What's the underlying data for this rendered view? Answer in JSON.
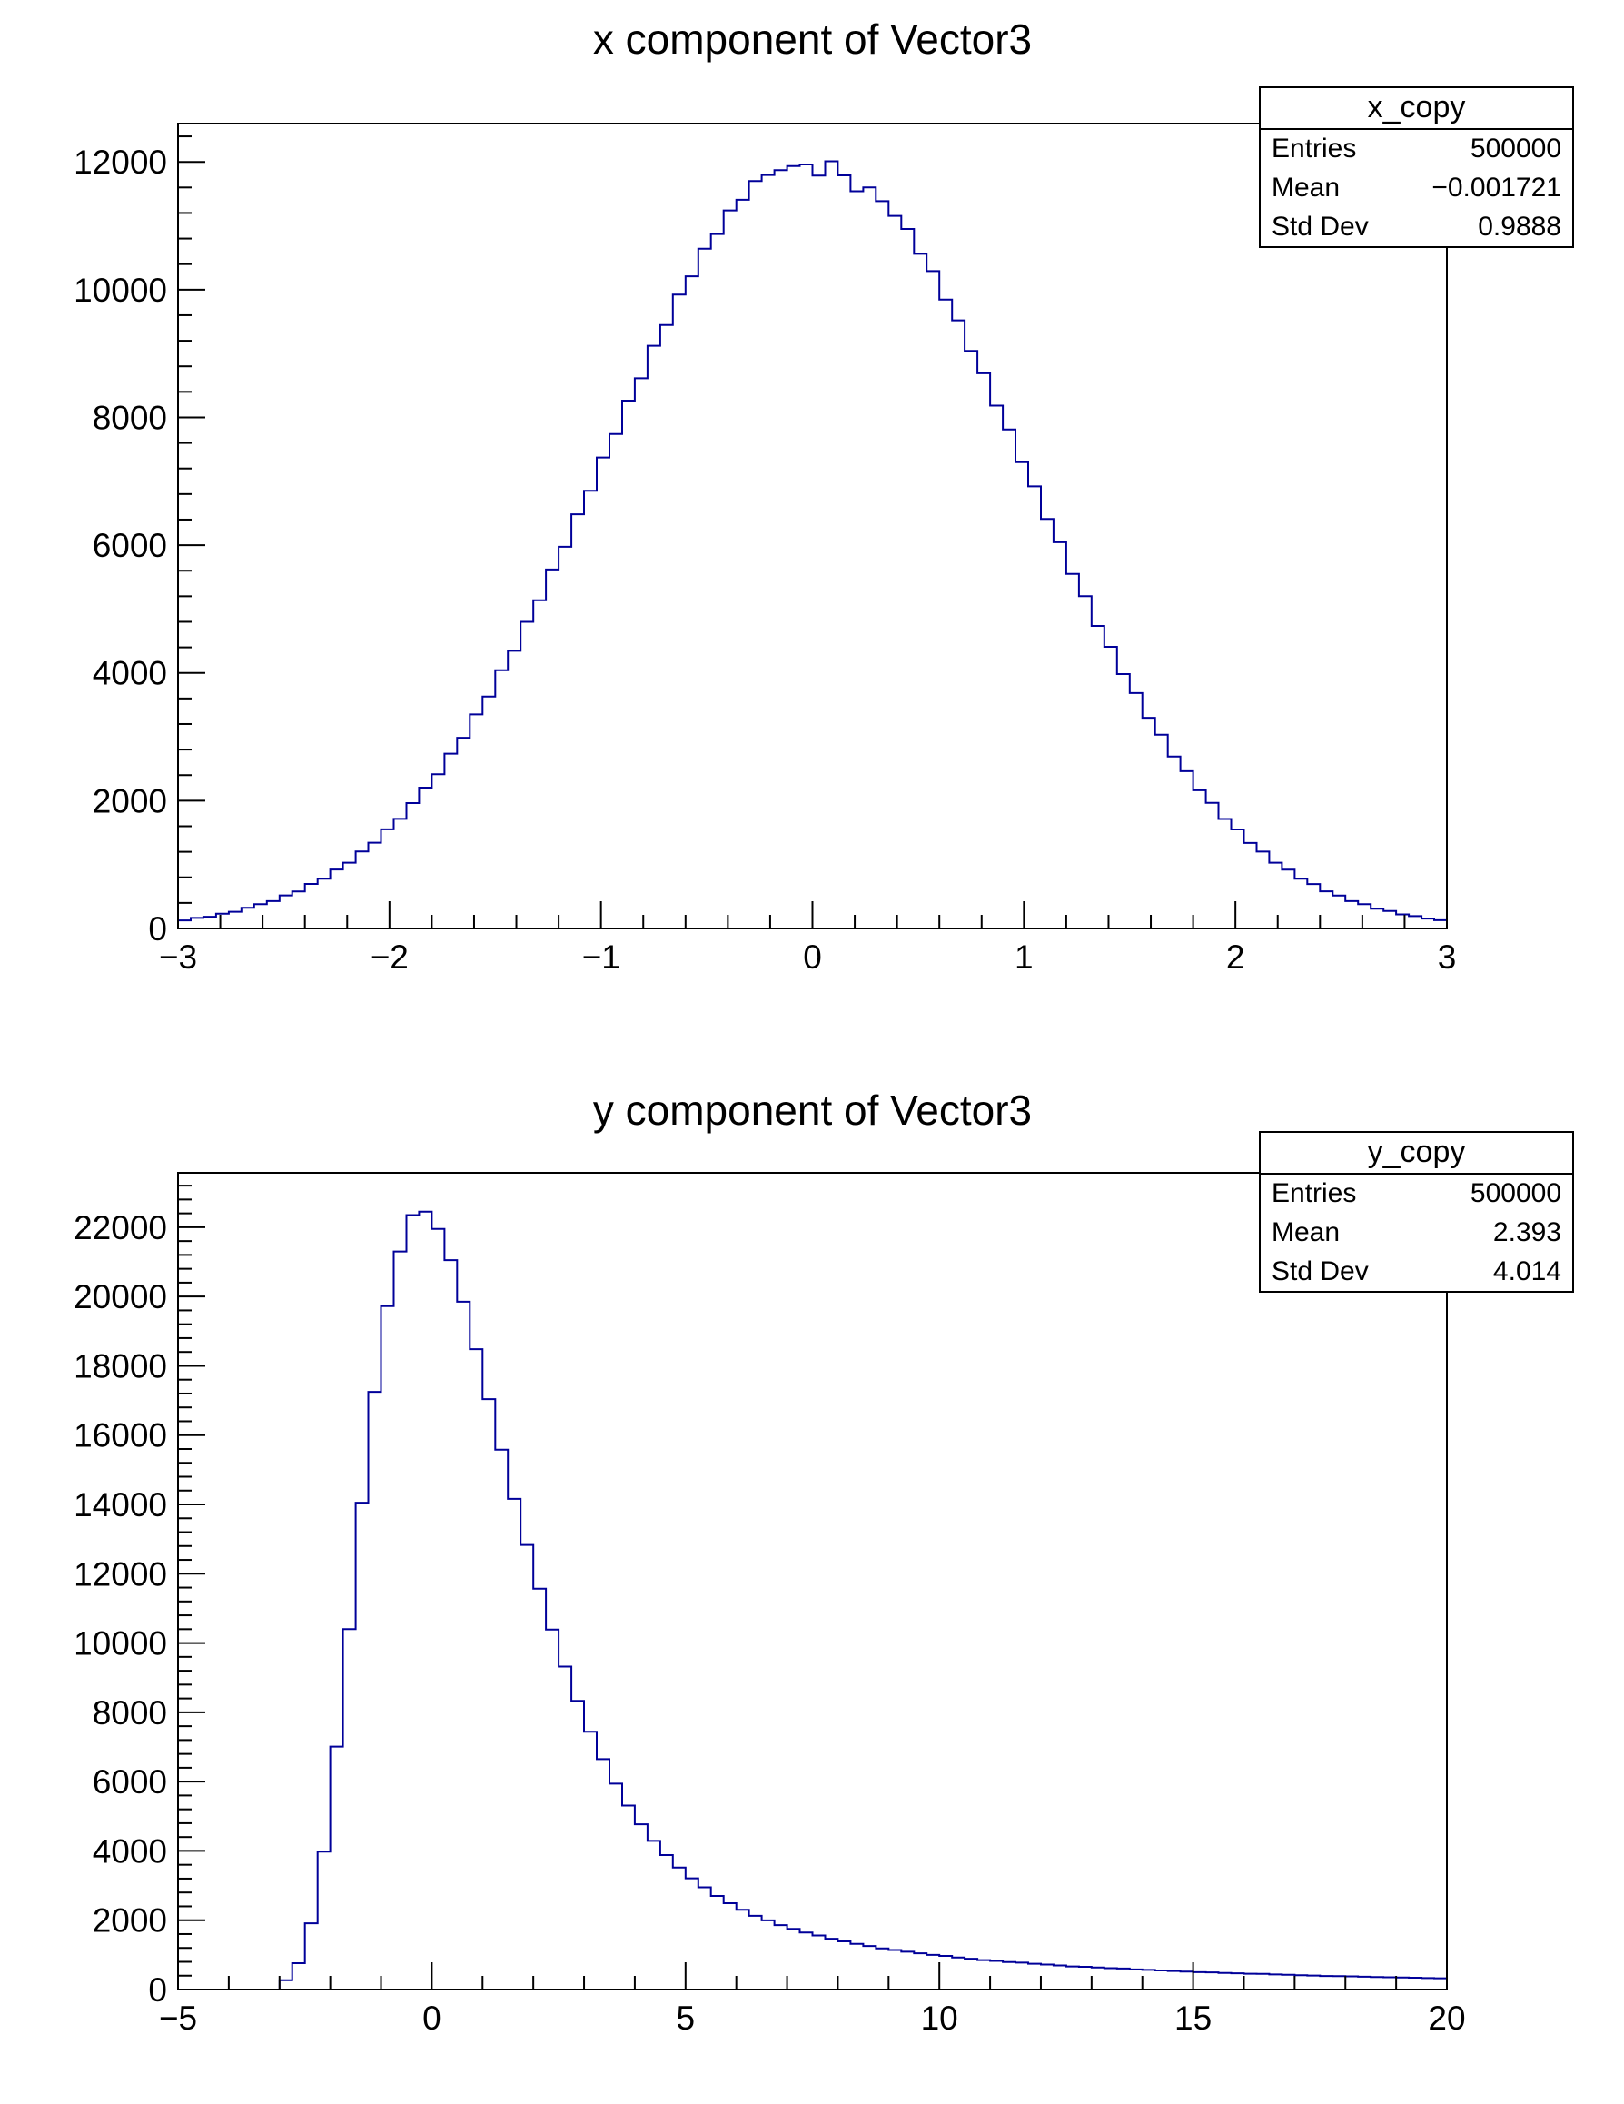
{
  "canvas": {
    "background": "#ffffff",
    "frame_color": "#000000",
    "text_color": "#000000"
  },
  "chart_data": [
    {
      "type": "bar",
      "subtype": "histogram-step",
      "title": "x component of Vector3",
      "line_color": "#000099",
      "x_range": [
        -3,
        3
      ],
      "y_range": [
        0,
        12600
      ],
      "n_bins": 100,
      "bin_width": 0.06,
      "grid": false,
      "x_major_ticks": [
        -3,
        -2,
        -1,
        0,
        1,
        2,
        3
      ],
      "x_tick_labels": [
        "−3",
        "−2",
        "−1",
        "0",
        "1",
        "2",
        "3"
      ],
      "x_minor_step": 0.2,
      "y_major_ticks": [
        0,
        2000,
        4000,
        6000,
        8000,
        10000,
        12000
      ],
      "y_tick_labels": [
        "0",
        "2000",
        "4000",
        "6000",
        "8000",
        "10000",
        "12000"
      ],
      "y_minor_step": 400,
      "stats_box": {
        "title": "x_copy",
        "rows": [
          {
            "label": "Entries",
            "value": "500000"
          },
          {
            "label": "Mean",
            "value": "−0.001721"
          },
          {
            "label": "Std Dev",
            "value": "0.9888"
          }
        ]
      },
      "entries": 500000,
      "mean": -0.001721,
      "std_dev": 0.9888,
      "bin_contents": [
        126,
        165,
        183,
        231,
        262,
        324,
        381,
        428,
        517,
        579,
        697,
        778,
        923,
        1029,
        1205,
        1342,
        1551,
        1715,
        1962,
        2205,
        2413,
        2736,
        2985,
        3350,
        3630,
        4041,
        4346,
        4800,
        5136,
        5619,
        5975,
        6484,
        6851,
        7372,
        7740,
        8262,
        8613,
        9121,
        9447,
        9924,
        10210,
        10641,
        10871,
        11240,
        11407,
        11700,
        11795,
        11870,
        11935,
        11960,
        11785,
        12010,
        11790,
        11540,
        11600,
        11385,
        11155,
        10950,
        10560,
        10290,
        9845,
        9520,
        9040,
        8690,
        8185,
        7812,
        7300,
        6920,
        6410,
        6045,
        5550,
        5200,
        4735,
        4408,
        3982,
        3685,
        3298,
        3032,
        2690,
        2462,
        2163,
        1967,
        1714,
        1550,
        1338,
        1203,
        1030,
        920,
        780,
        695,
        582,
        516,
        428,
        379,
        310,
        273,
        221,
        194,
        155,
        130
      ]
    },
    {
      "type": "bar",
      "subtype": "histogram-step",
      "title": "y component of Vector3",
      "line_color": "#000099",
      "x_range": [
        -5,
        20
      ],
      "y_range": [
        0,
        23570
      ],
      "n_bins": 100,
      "bin_width": 0.25,
      "grid": false,
      "x_major_ticks": [
        -5,
        0,
        5,
        10,
        15,
        20
      ],
      "x_tick_labels": [
        "−5",
        "0",
        "5",
        "10",
        "15",
        "20"
      ],
      "x_minor_step": 1,
      "y_major_ticks": [
        0,
        2000,
        4000,
        6000,
        8000,
        10000,
        12000,
        14000,
        16000,
        18000,
        20000,
        22000
      ],
      "y_tick_labels": [
        "0",
        "2000",
        "4000",
        "6000",
        "8000",
        "10000",
        "12000",
        "14000",
        "16000",
        "18000",
        "20000",
        "22000"
      ],
      "y_minor_step": 400,
      "stats_box": {
        "title": "y_copy",
        "rows": [
          {
            "label": "Entries",
            "value": "500000"
          },
          {
            "label": "Mean",
            "value": "2.393"
          },
          {
            "label": "Std Dev",
            "value": "4.014"
          }
        ]
      },
      "entries": 500000,
      "mean": 2.393,
      "std_dev": 4.014,
      "bin_contents": [
        0,
        0,
        0,
        0,
        0,
        0,
        0,
        0,
        270,
        760,
        1910,
        3980,
        7010,
        10400,
        14050,
        17250,
        19720,
        21300,
        22350,
        22450,
        21950,
        21050,
        19850,
        18480,
        17040,
        15580,
        14160,
        12830,
        11570,
        10390,
        9320,
        8330,
        7440,
        6650,
        5940,
        5310,
        4770,
        4290,
        3880,
        3520,
        3210,
        2950,
        2700,
        2490,
        2300,
        2125,
        1995,
        1860,
        1750,
        1645,
        1560,
        1465,
        1390,
        1320,
        1255,
        1185,
        1140,
        1090,
        1045,
        1000,
        970,
        925,
        890,
        850,
        825,
        795,
        775,
        745,
        720,
        695,
        665,
        655,
        635,
        615,
        605,
        580,
        565,
        550,
        535,
        520,
        500,
        495,
        480,
        470,
        455,
        450,
        435,
        425,
        415,
        405,
        390,
        385,
        380,
        370,
        360,
        355,
        345,
        340,
        330,
        325
      ]
    }
  ]
}
